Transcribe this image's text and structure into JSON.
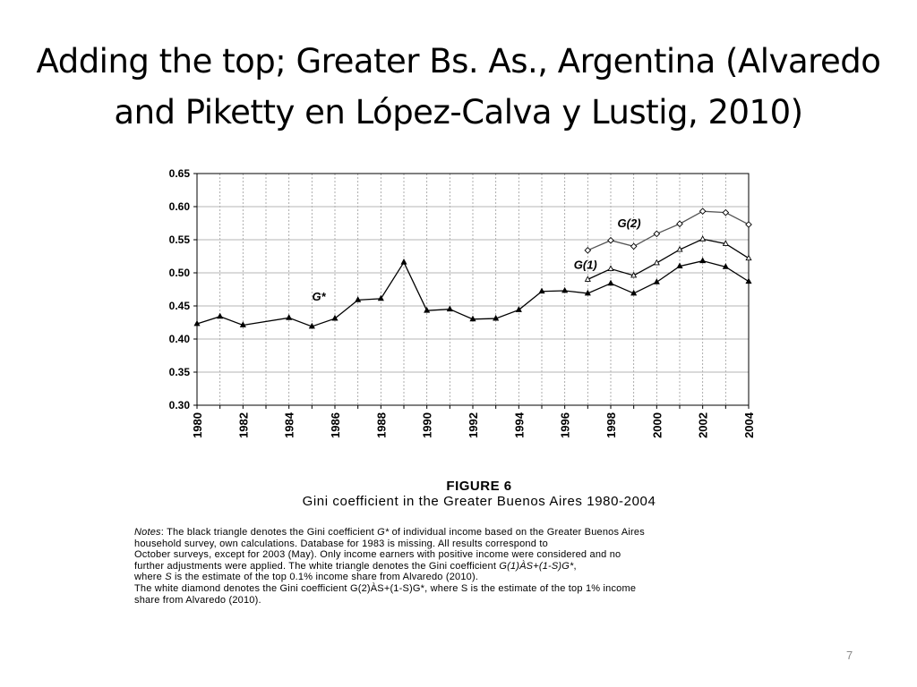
{
  "slide": {
    "title_line1": "Adding the top; Greater Bs. As., Argentina (Alvaredo",
    "title_line2": "and Piketty en López-Calva y Lustig, 2010)",
    "page_number": "7"
  },
  "figure": {
    "label": "FIGURE 6",
    "caption": "Gini coefficient in the Greater Buenos Aires 1980-2004"
  },
  "notes": {
    "line1_lead": "Notes",
    "line1_a": ": The black triangle denotes the Gini coefficient ",
    "line1_g": "G*",
    "line1_b": " of individual income based on the Greater Buenos Aires",
    "line2": "household survey, own calculations. Database for 1983 is missing. All results correspond to",
    "line3": "October surveys, except for 2003 (May). Only income earners with positive income were considered and no",
    "line4_a": "further adjustments were applied. The white triangle denotes the Gini coefficient ",
    "line4_f": "G(1)ÀS+(1-S)G*",
    "line4_b": ",",
    "line5_a": "where ",
    "line5_s": "S",
    "line5_b": " is the estimate of the top 0.1% income share from Alvaredo (2010).",
    "line6": "The white diamond denotes the Gini coefficient G(2)ÀS+(1-S)G*, where S is the estimate of the top 1% income",
    "line7": "share from Alvaredo (2010)."
  },
  "chart_data": {
    "type": "line",
    "ylim": [
      0.3,
      0.65
    ],
    "xlim": [
      1980,
      2004
    ],
    "yticks": [
      "0.30",
      "0.35",
      "0.40",
      "0.45",
      "0.50",
      "0.55",
      "0.60",
      "0.65"
    ],
    "xticks": [
      "1980",
      "1982",
      "1984",
      "1986",
      "1988",
      "1990",
      "1992",
      "1994",
      "1996",
      "1998",
      "2000",
      "2002",
      "2004"
    ],
    "grid": "vertical dotted every year, horizontal solid at each y tick",
    "series": [
      {
        "name": "G*",
        "marker": "black-triangle",
        "color": "#000000",
        "x": [
          1980,
          1981,
          1982,
          1984,
          1985,
          1986,
          1987,
          1988,
          1989,
          1990,
          1991,
          1992,
          1993,
          1994,
          1995,
          1996,
          1997,
          1998,
          1999,
          2000,
          2001,
          2002,
          2003,
          2004
        ],
        "y": [
          0.423,
          0.434,
          0.421,
          0.432,
          0.419,
          0.431,
          0.459,
          0.461,
          0.516,
          0.443,
          0.445,
          0.43,
          0.431,
          0.444,
          0.472,
          0.473,
          0.469,
          0.484,
          0.469,
          0.486,
          0.51,
          0.518,
          0.509,
          0.487
        ]
      },
      {
        "name": "G(1)",
        "marker": "white-triangle",
        "color": "#000000",
        "x": [
          1997,
          1998,
          1999,
          2000,
          2001,
          2002,
          2003,
          2004
        ],
        "y": [
          0.49,
          0.506,
          0.496,
          0.515,
          0.535,
          0.551,
          0.544,
          0.522
        ]
      },
      {
        "name": "G(2)",
        "marker": "white-diamond",
        "color": "#555555",
        "x": [
          1997,
          1998,
          1999,
          2000,
          2001,
          2002,
          2003,
          2004
        ],
        "y": [
          0.534,
          0.549,
          0.54,
          0.559,
          0.574,
          0.593,
          0.591,
          0.573
        ]
      }
    ],
    "annotations": [
      {
        "text": "G*",
        "x": 1985.3,
        "y": 0.458
      },
      {
        "text": "G(1)",
        "x": 1996.9,
        "y": 0.506
      },
      {
        "text": "G(2)",
        "x": 1998.8,
        "y": 0.569
      }
    ]
  }
}
